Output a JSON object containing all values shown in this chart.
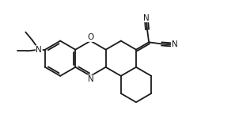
{
  "line_color": "#1a1a1a",
  "bg_color": "#ffffff",
  "lw": 1.3,
  "figsize": [
    2.97,
    1.73
  ],
  "dpi": 100,
  "xlim": [
    -3.0,
    3.2
  ],
  "ylim": [
    -2.2,
    1.8
  ]
}
